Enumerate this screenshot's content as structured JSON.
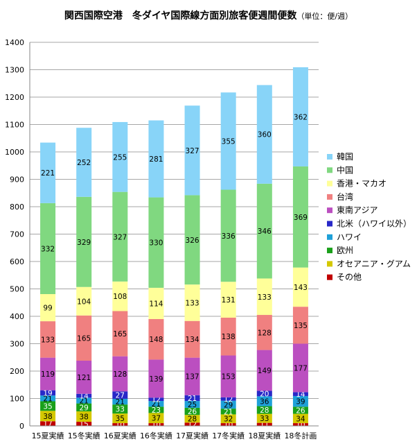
{
  "chart_data": {
    "type": "bar",
    "stacked": true,
    "title": "関西国際空港　冬ダイヤ国際線方面別旅客便週間便数",
    "unit": "（単位：便/週）",
    "categories": [
      "15夏実績",
      "15冬実績",
      "16夏実績",
      "16冬実績",
      "17夏実績",
      "17冬実績",
      "18夏実績",
      "18冬計画"
    ],
    "ylim": [
      0,
      1400
    ],
    "yticks": [
      0,
      100,
      200,
      300,
      400,
      500,
      600,
      700,
      800,
      900,
      1000,
      1100,
      1200,
      1300,
      1400
    ],
    "grid": true,
    "legend": "right",
    "series": [
      {
        "name": "その他",
        "color": "#c00000",
        "values": [
          17,
          15,
          10,
          10,
          12,
          10,
          11,
          10
        ]
      },
      {
        "name": "オセアニア・グアム",
        "color": "#d4c800",
        "values": [
          38,
          38,
          35,
          37,
          28,
          32,
          33,
          34
        ]
      },
      {
        "name": "欧州",
        "color": "#1aa01a",
        "values": [
          35,
          29,
          33,
          23,
          26,
          21,
          28,
          26
        ]
      },
      {
        "name": "ハワイ",
        "color": "#1ea0d8",
        "values": [
          21,
          21,
          21,
          21,
          25,
          29,
          36,
          39
        ]
      },
      {
        "name": "北米（ハワイ以外）",
        "color": "#2828c8",
        "values": [
          19,
          14,
          27,
          12,
          21,
          12,
          20,
          14
        ]
      },
      {
        "name": "東南アジア",
        "color": "#bb4fc0",
        "values": [
          119,
          121,
          128,
          139,
          137,
          153,
          149,
          177
        ]
      },
      {
        "name": "台湾",
        "color": "#f08080",
        "values": [
          133,
          165,
          165,
          148,
          134,
          138,
          128,
          135
        ]
      },
      {
        "name": "香港・マカオ",
        "color": "#ffff99",
        "values": [
          99,
          104,
          108,
          114,
          133,
          131,
          133,
          143
        ]
      },
      {
        "name": "中国",
        "color": "#80d880",
        "values": [
          332,
          329,
          327,
          330,
          326,
          336,
          346,
          369
        ]
      },
      {
        "name": "韓国",
        "color": "#88d4f8",
        "values": [
          221,
          252,
          255,
          281,
          327,
          355,
          360,
          362
        ]
      }
    ]
  }
}
